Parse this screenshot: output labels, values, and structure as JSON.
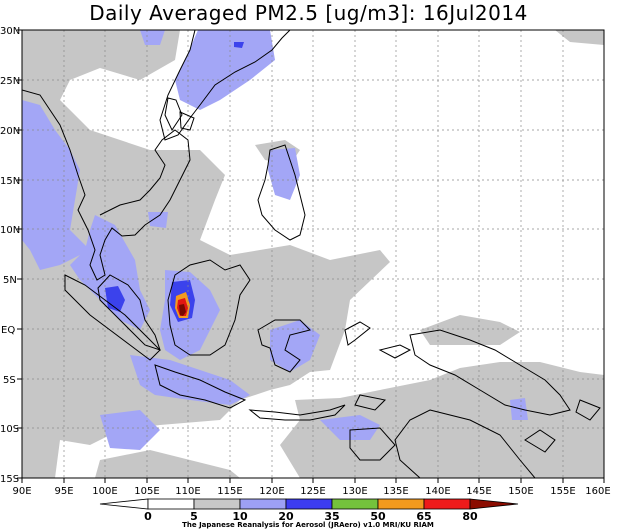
{
  "title": "Daily Averaged PM2.5 [ug/m3]: 16Jul2014",
  "credit": "The Japanese Reanalysis for Aerosol (JRAero) v1.0 MRI/KU RIAM",
  "lat_labels": [
    "30N",
    "25N",
    "20N",
    "15N",
    "10N",
    "5N",
    "EQ",
    "5S",
    "10S",
    "15S"
  ],
  "lon_labels": [
    "90E",
    "95E",
    "100E",
    "105E",
    "110E",
    "115E",
    "120E",
    "125E",
    "130E",
    "135E",
    "140E",
    "145E",
    "150E",
    "155E",
    "160E"
  ],
  "colorbar": {
    "ticks": [
      "0",
      "5",
      "10",
      "20",
      "35",
      "50",
      "65",
      "80"
    ],
    "colors": [
      "#ffffff",
      "#c8c8c8",
      "#9da0f5",
      "#3c3cf0",
      "#74c23c",
      "#f29a1e",
      "#ee1a1a",
      "#8b0c00"
    ]
  },
  "map": {
    "extent": {
      "lon": [
        90,
        160
      ],
      "lat": [
        -15,
        30
      ]
    },
    "field_colors": {
      "gray": "#c6c6c6",
      "light_blue": "#a3a6f6",
      "blue": "#3b42ec",
      "orange": "#f49b1f",
      "red": "#e11612",
      "dark_red": "#7a0a00"
    },
    "hotspot": {
      "lon": 110,
      "lat": 2,
      "level": "80+"
    }
  }
}
